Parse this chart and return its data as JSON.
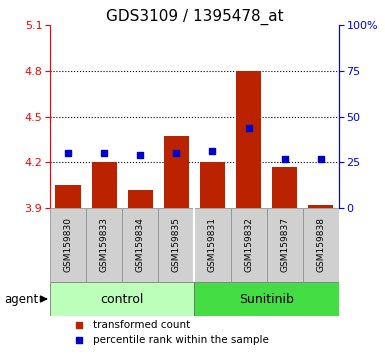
{
  "title": "GDS3109 / 1395478_at",
  "samples": [
    "GSM159830",
    "GSM159833",
    "GSM159834",
    "GSM159835",
    "GSM159831",
    "GSM159832",
    "GSM159837",
    "GSM159838"
  ],
  "groups": [
    "control",
    "control",
    "control",
    "control",
    "Sunitinib",
    "Sunitinib",
    "Sunitinib",
    "Sunitinib"
  ],
  "red_values": [
    4.05,
    4.2,
    4.02,
    4.37,
    4.2,
    4.8,
    4.17,
    3.92
  ],
  "blue_values": [
    30,
    30,
    29,
    30,
    31,
    44,
    27,
    27
  ],
  "ymin": 3.9,
  "ymax": 5.1,
  "yticks": [
    3.9,
    4.2,
    4.5,
    4.8,
    5.1
  ],
  "y2min": 0,
  "y2max": 100,
  "y2ticks": [
    0,
    25,
    50,
    75,
    100
  ],
  "bar_color": "#bb2200",
  "dot_color": "#0000cc",
  "control_color": "#bbffbb",
  "sunitinib_color": "#44dd44",
  "bar_baseline": 3.9,
  "bar_width": 0.7,
  "title_fontsize": 11,
  "tick_fontsize": 8,
  "legend_bar": "transformed count",
  "legend_dot": "percentile rank within the sample",
  "agent_label": "agent"
}
